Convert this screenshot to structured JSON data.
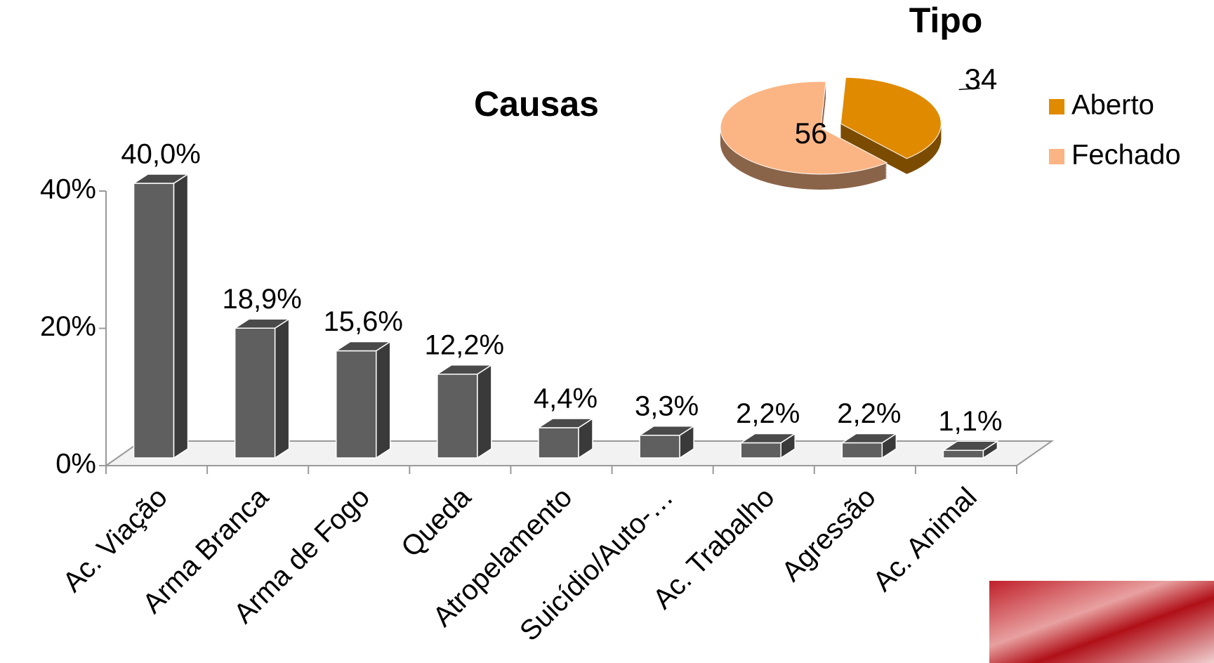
{
  "chart_data": [
    {
      "type": "bar",
      "title": "Causas",
      "categories": [
        "Ac. Viação",
        "Arma Branca",
        "Arma de Fogo",
        "Queda",
        "Atropelamento",
        "Suicídio/Auto-…",
        "Ac. Trabalho",
        "Agressão",
        "Ac. Animal"
      ],
      "values": [
        40.0,
        18.9,
        15.6,
        12.2,
        4.4,
        3.3,
        2.2,
        2.2,
        1.1
      ],
      "value_labels": [
        "40,0%",
        "18,9%",
        "15,6%",
        "12,2%",
        "4,4%",
        "3,3%",
        "2,2%",
        "2,2%",
        "1,1%"
      ],
      "color": "#5f5f5f",
      "ylim": [
        0,
        40
      ],
      "yticks": [
        {
          "value": 0,
          "label": "0%"
        },
        {
          "value": 20,
          "label": "20%"
        },
        {
          "value": 40,
          "label": "40%"
        }
      ],
      "grid": false
    },
    {
      "type": "pie",
      "title": "Tipo",
      "categories": [
        "Aberto",
        "Fechado"
      ],
      "values": [
        34,
        56
      ],
      "colors": [
        "#e08a00",
        "#fbb584"
      ],
      "legend": "right"
    }
  ]
}
